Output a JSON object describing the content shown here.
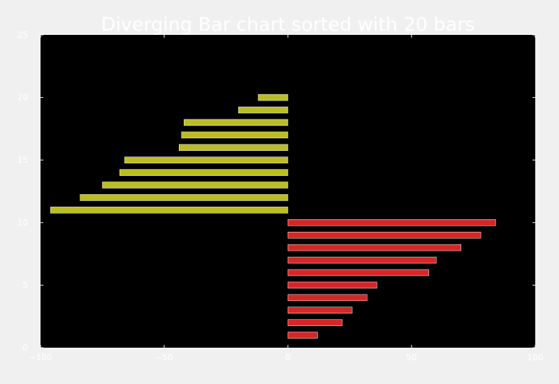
{
  "chart_data": {
    "type": "bar",
    "orientation": "horizontal",
    "title": "Diverging Bar chart sorted with 20 bars",
    "xlabel": "",
    "ylabel": "",
    "xlim": [
      -100,
      100
    ],
    "ylim": [
      0,
      25
    ],
    "xticks": [
      -100,
      -50,
      0,
      50,
      100
    ],
    "yticks": [
      0,
      5,
      10,
      15,
      20,
      25
    ],
    "xtick_labels": [
      "−100",
      "−50",
      "0",
      "50",
      "100"
    ],
    "ytick_labels": [
      "0",
      "5",
      "10",
      "15",
      "20",
      "25"
    ],
    "grid": false,
    "legend": false,
    "background_color": "#000000",
    "figure_color": "#f0f0f0",
    "text_color": "#ffffff",
    "positive_color": "#d62728",
    "negative_color": "#bcbd22",
    "y": [
      1,
      2,
      3,
      4,
      5,
      6,
      7,
      8,
      9,
      10,
      11,
      12,
      13,
      14,
      15,
      16,
      17,
      18,
      19,
      20
    ],
    "values": [
      12,
      22,
      26,
      32,
      36,
      57,
      60,
      70,
      78,
      84,
      -96,
      -84,
      -75,
      -68,
      -66,
      -44,
      -43,
      -42,
      -20,
      -12
    ]
  }
}
